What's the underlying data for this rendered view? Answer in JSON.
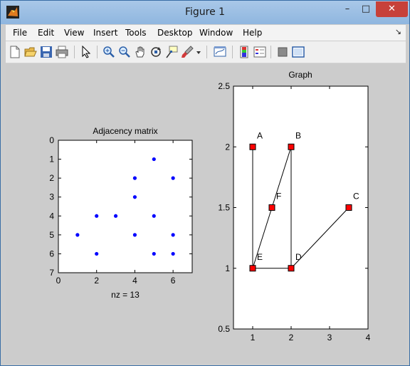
{
  "window": {
    "title": "Figure 1",
    "minimize": "–",
    "maximize": "□",
    "close": "✕"
  },
  "menu": {
    "items": [
      "File",
      "Edit",
      "View",
      "Insert",
      "Tools",
      "Desktop",
      "Window",
      "Help"
    ],
    "arrow": "↘"
  },
  "toolbar": {
    "icons": [
      "new-figure-icon",
      "open-file-icon",
      "save-icon",
      "print-icon",
      "pointer-icon",
      "zoom-in-icon",
      "zoom-out-icon",
      "pan-icon",
      "rotate-3d-icon",
      "data-cursor-icon",
      "brush-icon",
      "brush-dropdown-icon",
      "link-plot-icon",
      "colorbar-icon",
      "legend-icon",
      "hide-plot-tools-icon",
      "show-plot-tools-icon"
    ]
  },
  "colors": {
    "marker_blue": "#0000ff",
    "node_red": "#ff0000",
    "figure_bg": "#cccccc",
    "axes_bg": "#ffffff"
  },
  "chart_data": [
    {
      "type": "scatter",
      "title": "Adjacency matrix",
      "xlabel": "nz = 13",
      "ylabel": "",
      "xlim": [
        0,
        7
      ],
      "ylim": [
        0,
        7
      ],
      "y_reversed": true,
      "xticks": [
        "0",
        "2",
        "4",
        "6"
      ],
      "yticks": [
        "0",
        "1",
        "2",
        "3",
        "4",
        "5",
        "6",
        "7"
      ],
      "marker": "dot",
      "points": [
        {
          "x": 5,
          "y": 1
        },
        {
          "x": 4,
          "y": 2
        },
        {
          "x": 6,
          "y": 2
        },
        {
          "x": 4,
          "y": 3
        },
        {
          "x": 2,
          "y": 4
        },
        {
          "x": 3,
          "y": 4
        },
        {
          "x": 5,
          "y": 4
        },
        {
          "x": 1,
          "y": 5
        },
        {
          "x": 4,
          "y": 5
        },
        {
          "x": 6,
          "y": 5
        },
        {
          "x": 2,
          "y": 6
        },
        {
          "x": 5,
          "y": 6
        },
        {
          "x": 6,
          "y": 6
        }
      ]
    },
    {
      "type": "graph",
      "title": "Graph",
      "xlim": [
        0.5,
        4
      ],
      "ylim": [
        0.5,
        2.5
      ],
      "xticks": [
        "1",
        "2",
        "3",
        "4"
      ],
      "yticks": [
        "0.5",
        "1",
        "1.5",
        "2",
        "2.5"
      ],
      "nodes": [
        {
          "name": "A",
          "x": 1,
          "y": 2
        },
        {
          "name": "B",
          "x": 2,
          "y": 2
        },
        {
          "name": "C",
          "x": 3.5,
          "y": 1.5
        },
        {
          "name": "D",
          "x": 2,
          "y": 1
        },
        {
          "name": "E",
          "x": 1,
          "y": 1
        },
        {
          "name": "F",
          "x": 1.5,
          "y": 1.5
        }
      ],
      "edges": [
        [
          "A",
          "E"
        ],
        [
          "B",
          "D"
        ],
        [
          "B",
          "F"
        ],
        [
          "F",
          "E"
        ],
        [
          "E",
          "D"
        ],
        [
          "D",
          "C"
        ]
      ]
    }
  ]
}
